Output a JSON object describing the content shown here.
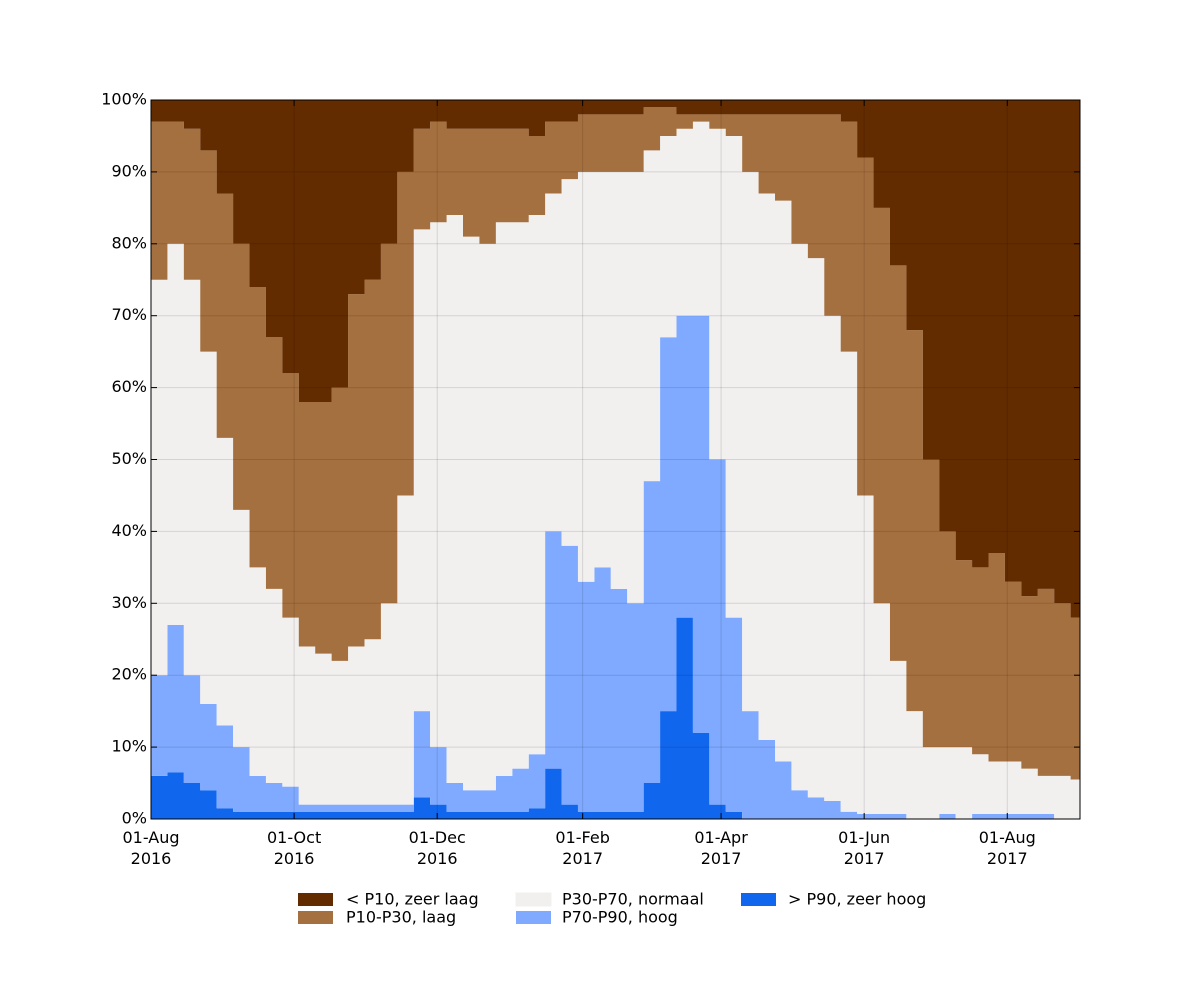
{
  "chart_data": {
    "type": "stacked-area",
    "x": [
      "2016-08-01",
      "2016-08-08",
      "2016-08-15",
      "2016-08-22",
      "2016-08-29",
      "2016-09-05",
      "2016-09-12",
      "2016-09-19",
      "2016-09-26",
      "2016-10-03",
      "2016-10-10",
      "2016-10-17",
      "2016-10-24",
      "2016-10-31",
      "2016-11-07",
      "2016-11-14",
      "2016-11-21",
      "2016-11-28",
      "2016-12-05",
      "2016-12-12",
      "2016-12-19",
      "2016-12-26",
      "2017-01-02",
      "2017-01-09",
      "2017-01-16",
      "2017-01-23",
      "2017-01-30",
      "2017-02-06",
      "2017-02-13",
      "2017-02-20",
      "2017-02-27",
      "2017-03-06",
      "2017-03-13",
      "2017-03-20",
      "2017-03-27",
      "2017-04-03",
      "2017-04-10",
      "2017-04-17",
      "2017-04-24",
      "2017-05-01",
      "2017-05-08",
      "2017-05-15",
      "2017-05-22",
      "2017-05-29",
      "2017-06-05",
      "2017-06-12",
      "2017-06-19",
      "2017-06-26",
      "2017-07-03",
      "2017-07-10",
      "2017-07-17",
      "2017-07-24",
      "2017-07-31",
      "2017-08-07",
      "2017-08-14",
      "2017-08-21",
      "2017-08-28"
    ],
    "series": [
      {
        "name": "< P10, zeer laag",
        "color": "#632b00",
        "values": [
          3,
          3,
          4,
          7,
          13,
          20,
          26,
          33,
          38,
          42,
          42,
          40,
          27,
          25,
          20,
          10,
          4,
          3,
          4,
          4,
          4,
          4,
          4,
          5,
          3,
          3,
          2,
          2,
          2,
          2,
          1,
          1,
          2,
          2,
          2,
          2,
          2,
          2,
          2,
          2,
          2,
          2,
          3,
          8,
          15,
          23,
          32,
          50,
          60,
          64,
          65,
          63,
          67,
          69,
          68,
          70,
          72
        ]
      },
      {
        "name": "P10-P30, laag",
        "color": "#a5703f",
        "values": [
          22,
          17,
          21,
          28,
          34,
          37,
          39,
          35,
          34,
          34,
          35,
          38,
          49,
          50,
          50,
          45,
          14,
          14,
          12,
          15,
          16,
          13,
          13,
          11,
          10,
          8,
          8,
          8,
          8,
          8,
          6,
          4,
          2,
          1,
          2,
          3,
          8,
          11,
          12,
          18,
          20,
          28,
          32,
          47,
          55,
          55,
          53,
          40,
          30,
          26,
          26,
          29,
          25,
          24,
          26,
          24,
          22.5
        ]
      },
      {
        "name": "P30-P70, normaal",
        "color": "#f2f0ef",
        "values": [
          55,
          53,
          55,
          49,
          40,
          33,
          29,
          27,
          23.5,
          22,
          21,
          20,
          22,
          23,
          28,
          43,
          67,
          73,
          79,
          77,
          76,
          77,
          76,
          75,
          47,
          51,
          57,
          55,
          58,
          60,
          46,
          28,
          26,
          27,
          46,
          67,
          75,
          76,
          78,
          76,
          75,
          67.5,
          64,
          44.3,
          29.3,
          21.3,
          15,
          10,
          9.3,
          10,
          8.3,
          7.3,
          7.3,
          6.3,
          5.3,
          6,
          5.5
        ]
      },
      {
        "name": "P70-P90, hoog",
        "color": "#7faaff",
        "values": [
          14,
          20.5,
          15,
          12,
          11.5,
          9,
          5,
          4,
          3.5,
          1,
          1,
          1,
          1,
          1,
          1,
          1,
          12,
          8,
          4,
          3,
          3,
          5,
          6,
          7.5,
          33,
          36,
          32,
          34,
          31,
          29,
          42,
          52,
          42,
          58,
          48,
          27,
          15,
          11,
          8,
          4,
          3,
          2.5,
          1,
          0.7,
          0.7,
          0.7,
          0,
          0,
          0.7,
          0,
          0.7,
          0.7,
          0.7,
          0.7,
          0.7,
          0,
          0
        ]
      },
      {
        "name": "> P90, zeer hoog",
        "color": "#1166ee",
        "values": [
          6,
          6.5,
          5,
          4,
          1.5,
          1,
          1,
          1,
          1,
          1,
          1,
          1,
          1,
          1,
          1,
          1,
          3,
          2,
          1,
          1,
          1,
          1,
          1,
          1.5,
          7,
          2,
          1,
          1,
          1,
          1,
          5,
          15,
          28,
          12,
          2,
          1,
          0,
          0,
          0,
          0,
          0,
          0,
          0,
          0,
          0,
          0,
          0,
          0,
          0,
          0,
          0,
          0,
          0,
          0,
          0,
          0,
          0
        ]
      }
    ],
    "xlim": [
      "2016-08-01",
      "2017-09-01"
    ],
    "xticks": [
      {
        "value": "2016-08-01",
        "label": "01-Aug\n2016"
      },
      {
        "value": "2016-10-01",
        "label": "01-Oct\n2016"
      },
      {
        "value": "2016-12-01",
        "label": "01-Dec\n2016"
      },
      {
        "value": "2017-02-01",
        "label": "01-Feb\n2017"
      },
      {
        "value": "2017-04-01",
        "label": "01-Apr\n2017"
      },
      {
        "value": "2017-06-01",
        "label": "01-Jun\n2017"
      },
      {
        "value": "2017-08-01",
        "label": "01-Aug\n2017"
      }
    ],
    "ylim": [
      0,
      100
    ],
    "yticks": [
      {
        "value": 0,
        "label": "0%"
      },
      {
        "value": 10,
        "label": "10%"
      },
      {
        "value": 20,
        "label": "20%"
      },
      {
        "value": 30,
        "label": "30%"
      },
      {
        "value": 40,
        "label": "40%"
      },
      {
        "value": 50,
        "label": "50%"
      },
      {
        "value": 60,
        "label": "60%"
      },
      {
        "value": 70,
        "label": "70%"
      },
      {
        "value": 80,
        "label": "80%"
      },
      {
        "value": 90,
        "label": "90%"
      },
      {
        "value": 100,
        "label": "100%"
      }
    ],
    "grid": true,
    "legend": "bottom"
  }
}
